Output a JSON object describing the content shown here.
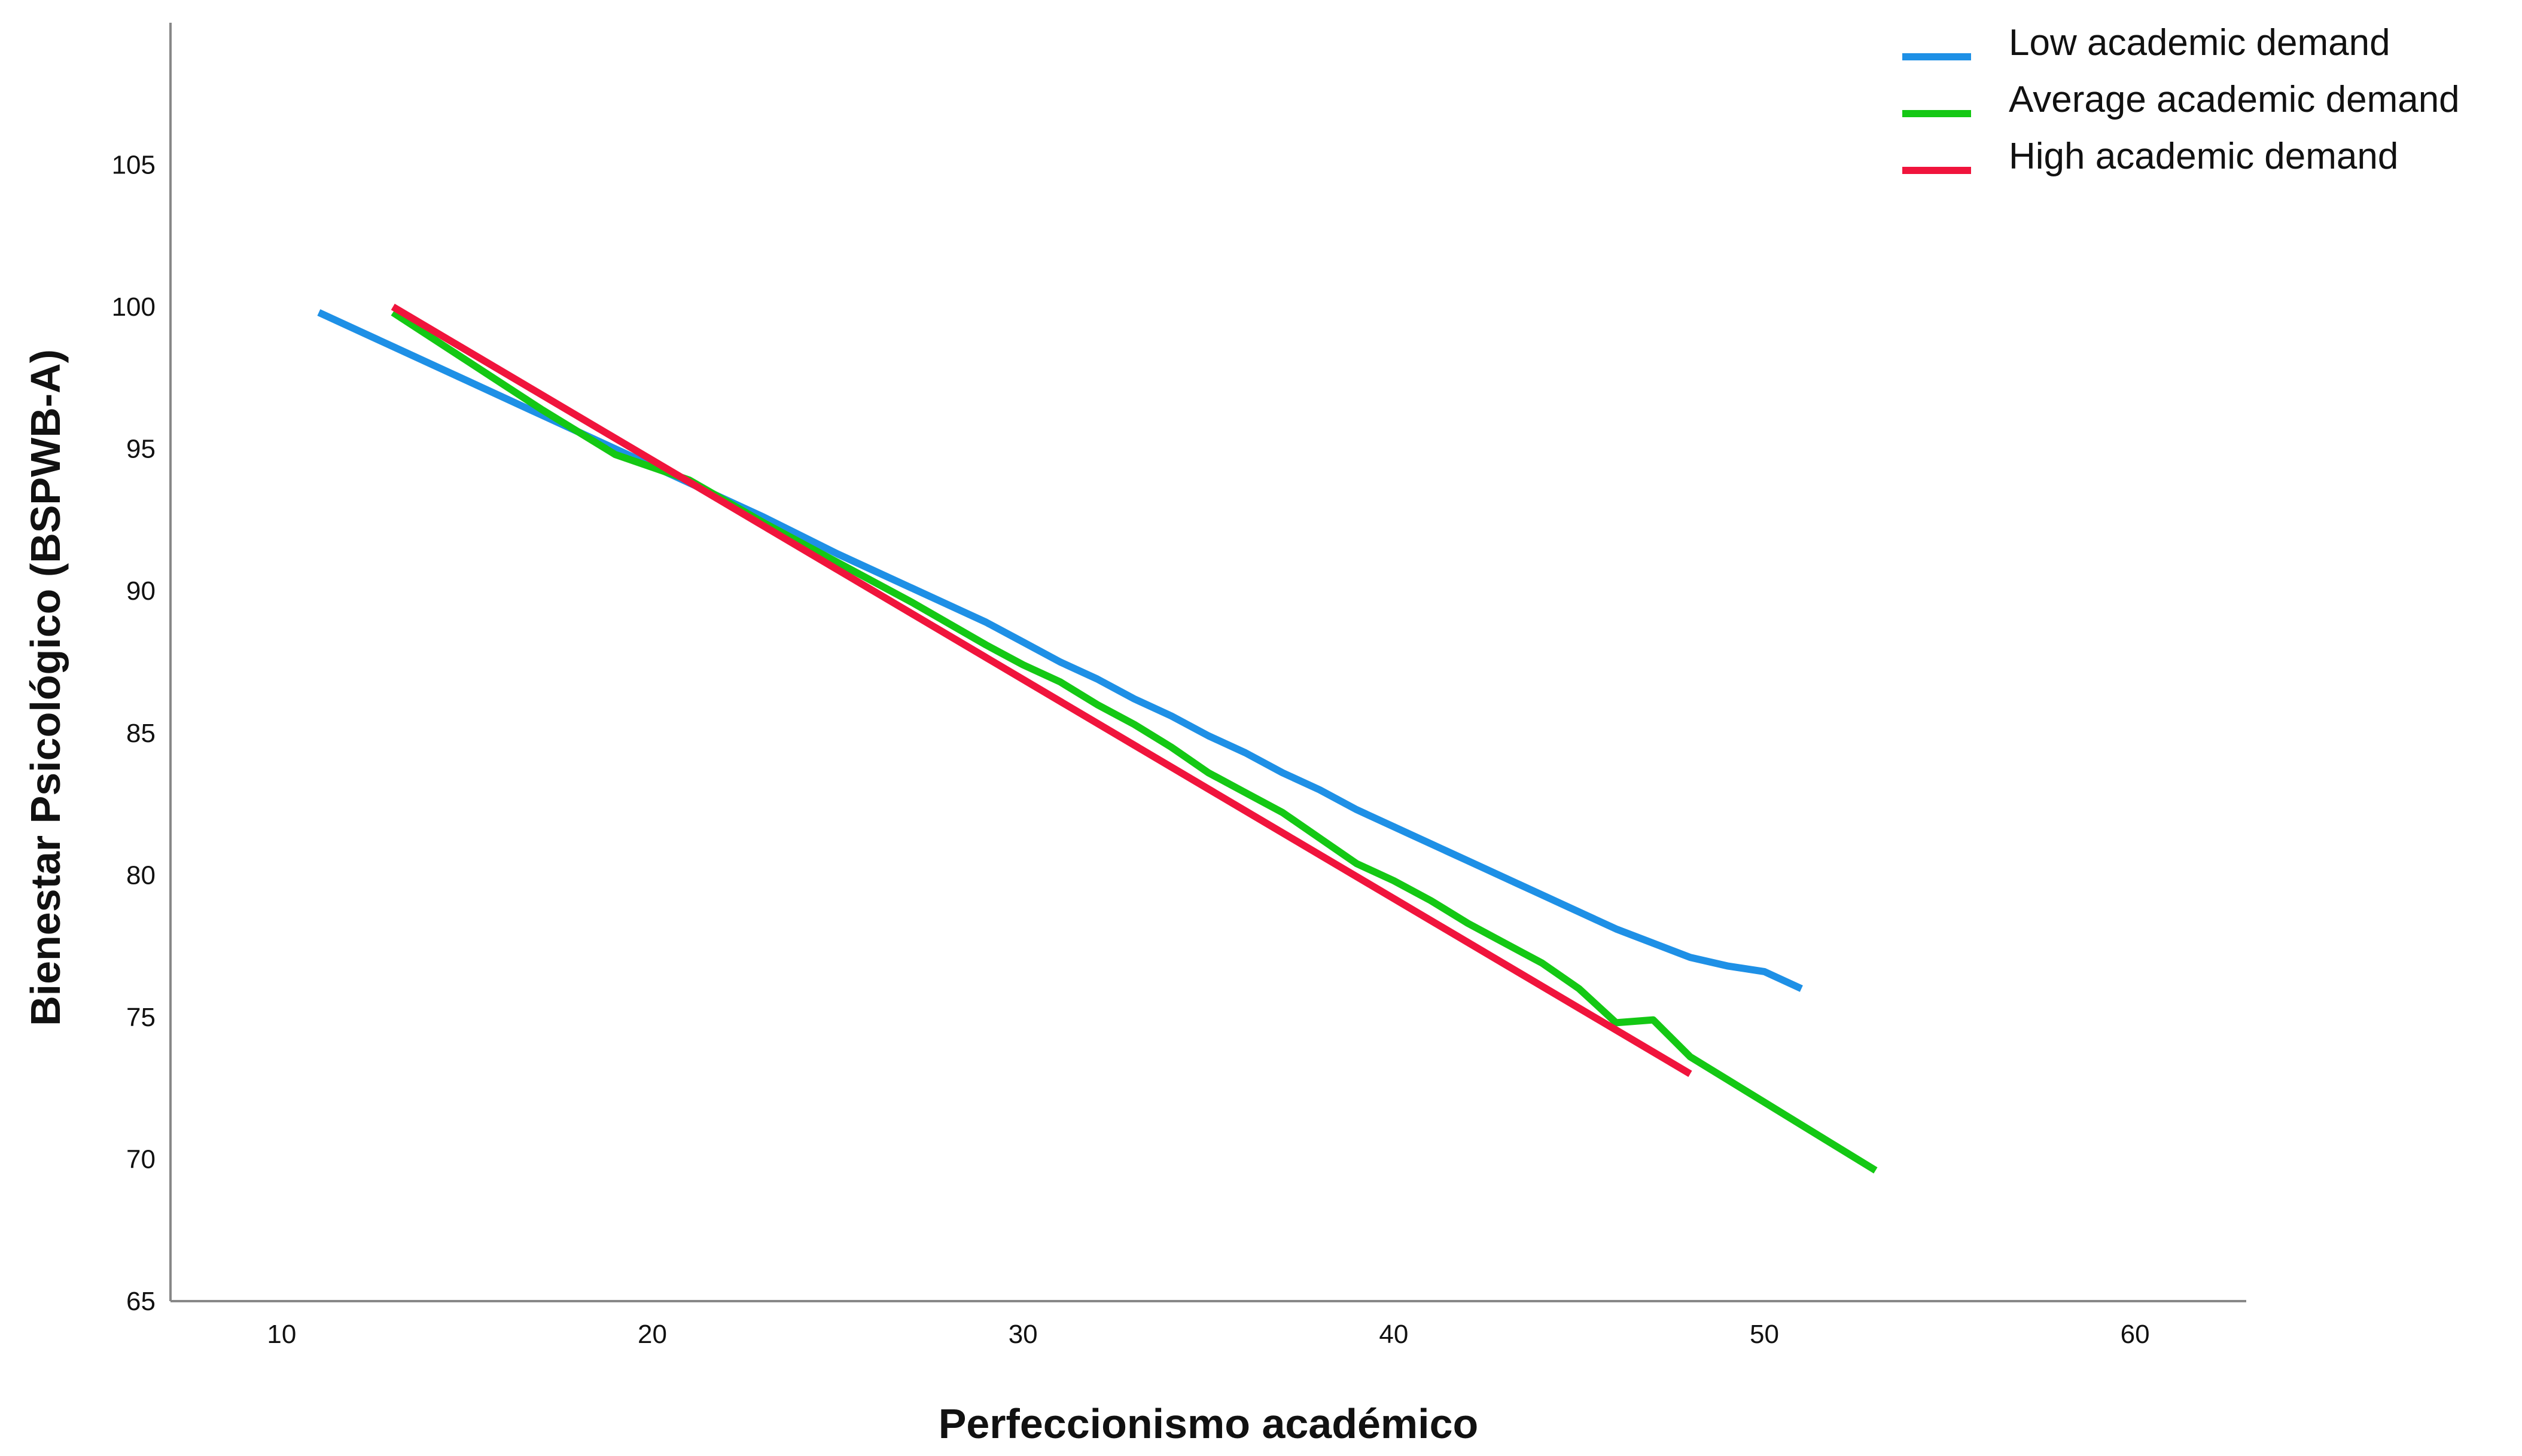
{
  "chart_data": {
    "type": "line",
    "title": "",
    "xlabel": "Perfeccionismo académico",
    "ylabel": "Bienestar Psicológico (BSPWB-A)",
    "xlim": [
      7,
      63
    ],
    "ylim": [
      65,
      110
    ],
    "xticks": [
      10,
      20,
      30,
      40,
      50,
      60
    ],
    "yticks": [
      65,
      70,
      75,
      80,
      85,
      90,
      95,
      100,
      105
    ],
    "grid": false,
    "legend_position": "top-right",
    "series": [
      {
        "name": "Low academic demand",
        "color": "#1e90e6",
        "x": [
          11,
          13,
          15,
          17,
          19,
          21,
          23,
          25,
          27,
          29,
          30,
          31,
          32,
          33,
          34,
          35,
          36,
          37,
          38,
          39,
          40,
          41,
          42,
          43,
          44,
          45,
          46,
          47,
          48,
          49,
          50,
          51
        ],
        "y": [
          99.8,
          98.6,
          97.4,
          96.2,
          95.0,
          93.8,
          92.6,
          91.3,
          90.1,
          88.9,
          88.2,
          87.5,
          86.9,
          86.2,
          85.6,
          84.9,
          84.3,
          83.6,
          83.0,
          82.3,
          81.7,
          81.1,
          80.5,
          79.9,
          79.3,
          78.7,
          78.1,
          77.6,
          77.1,
          76.8,
          76.6,
          76.0
        ]
      },
      {
        "name": "Average academic demand",
        "color": "#14c814",
        "x": [
          13,
          15,
          17,
          19,
          21,
          23,
          25,
          27,
          29,
          30,
          31,
          32,
          33,
          34,
          35,
          36,
          37,
          38,
          39,
          40,
          41,
          42,
          43,
          44,
          45,
          46,
          47,
          48,
          49,
          50,
          51,
          52,
          53
        ],
        "y": [
          99.8,
          98.1,
          96.4,
          94.8,
          93.9,
          92.4,
          91.0,
          89.6,
          88.1,
          87.4,
          86.8,
          86.0,
          85.3,
          84.5,
          83.6,
          82.9,
          82.2,
          81.3,
          80.4,
          79.8,
          79.1,
          78.3,
          77.6,
          76.9,
          76.0,
          74.8,
          74.9,
          73.6,
          72.8,
          72.0,
          71.2,
          70.4,
          69.6
        ]
      },
      {
        "name": "High academic demand",
        "color": "#f0143c",
        "x": [
          13,
          48
        ],
        "y": [
          100.0,
          73.0
        ]
      }
    ]
  }
}
